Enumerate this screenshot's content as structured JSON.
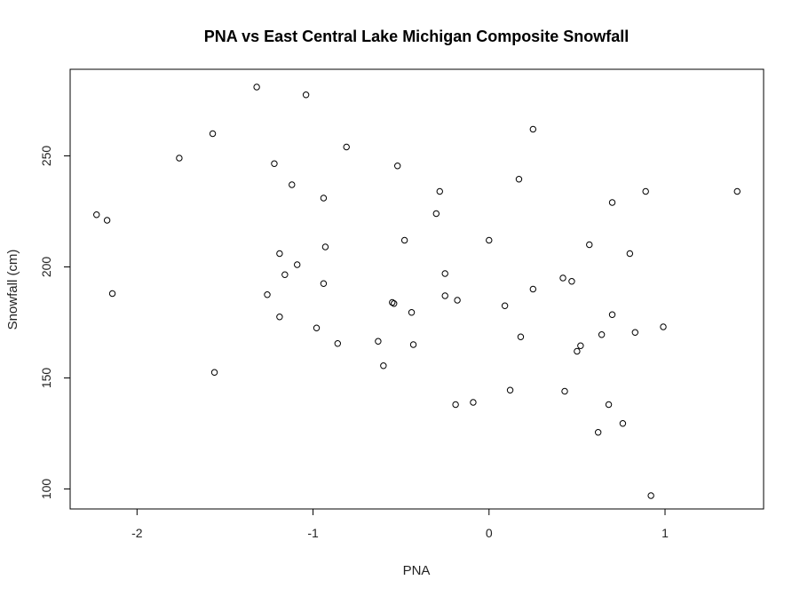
{
  "chart_data": {
    "type": "scatter",
    "title": "PNA vs East Central Lake Michigan Composite Snowfall",
    "xlabel": "PNA",
    "ylabel": "Snowfall (cm)",
    "xlim": [
      -2.38,
      1.56
    ],
    "ylim": [
      91,
      289
    ],
    "xticks": [
      -2,
      -1,
      0,
      1
    ],
    "xtick_labels": [
      "-2",
      "-1",
      "0",
      "1"
    ],
    "yticks": [
      100,
      150,
      200,
      250
    ],
    "ytick_labels": [
      "100",
      "150",
      "200",
      "250"
    ],
    "grid": false,
    "marker": "open-circle",
    "marker_color": "#000000",
    "points": [
      {
        "x": -2.23,
        "y": 223.5
      },
      {
        "x": -2.17,
        "y": 221
      },
      {
        "x": -2.14,
        "y": 188
      },
      {
        "x": -1.76,
        "y": 249
      },
      {
        "x": -1.57,
        "y": 260
      },
      {
        "x": -1.56,
        "y": 152.5
      },
      {
        "x": -1.32,
        "y": 281
      },
      {
        "x": -1.26,
        "y": 187.5
      },
      {
        "x": -1.22,
        "y": 246.5
      },
      {
        "x": -1.19,
        "y": 206
      },
      {
        "x": -1.19,
        "y": 177.5
      },
      {
        "x": -1.16,
        "y": 196.5
      },
      {
        "x": -1.12,
        "y": 237
      },
      {
        "x": -1.09,
        "y": 201
      },
      {
        "x": -1.04,
        "y": 277.5
      },
      {
        "x": -0.98,
        "y": 172.5
      },
      {
        "x": -0.94,
        "y": 231
      },
      {
        "x": -0.94,
        "y": 192.5
      },
      {
        "x": -0.93,
        "y": 209
      },
      {
        "x": -0.86,
        "y": 165.5
      },
      {
        "x": -0.81,
        "y": 254
      },
      {
        "x": -0.63,
        "y": 166.5
      },
      {
        "x": -0.6,
        "y": 155.5
      },
      {
        "x": -0.55,
        "y": 184
      },
      {
        "x": -0.54,
        "y": 183.5
      },
      {
        "x": -0.52,
        "y": 245.5
      },
      {
        "x": -0.48,
        "y": 212
      },
      {
        "x": -0.44,
        "y": 179.5
      },
      {
        "x": -0.43,
        "y": 165
      },
      {
        "x": -0.3,
        "y": 224
      },
      {
        "x": -0.28,
        "y": 234
      },
      {
        "x": -0.25,
        "y": 197
      },
      {
        "x": -0.25,
        "y": 187
      },
      {
        "x": -0.19,
        "y": 138
      },
      {
        "x": -0.18,
        "y": 185
      },
      {
        "x": -0.09,
        "y": 139
      },
      {
        "x": 0.0,
        "y": 212
      },
      {
        "x": 0.09,
        "y": 182.5
      },
      {
        "x": 0.12,
        "y": 144.5
      },
      {
        "x": 0.17,
        "y": 239.5
      },
      {
        "x": 0.18,
        "y": 168.5
      },
      {
        "x": 0.25,
        "y": 262
      },
      {
        "x": 0.25,
        "y": 190
      },
      {
        "x": 0.42,
        "y": 195
      },
      {
        "x": 0.43,
        "y": 144
      },
      {
        "x": 0.47,
        "y": 193.5
      },
      {
        "x": 0.5,
        "y": 162
      },
      {
        "x": 0.52,
        "y": 164.5
      },
      {
        "x": 0.57,
        "y": 210
      },
      {
        "x": 0.62,
        "y": 125.5
      },
      {
        "x": 0.64,
        "y": 169.5
      },
      {
        "x": 0.68,
        "y": 138
      },
      {
        "x": 0.7,
        "y": 178.5
      },
      {
        "x": 0.7,
        "y": 229
      },
      {
        "x": 0.76,
        "y": 129.5
      },
      {
        "x": 0.8,
        "y": 206
      },
      {
        "x": 0.83,
        "y": 170.5
      },
      {
        "x": 0.89,
        "y": 234
      },
      {
        "x": 0.92,
        "y": 97
      },
      {
        "x": 0.99,
        "y": 173
      },
      {
        "x": 1.41,
        "y": 234
      }
    ]
  }
}
